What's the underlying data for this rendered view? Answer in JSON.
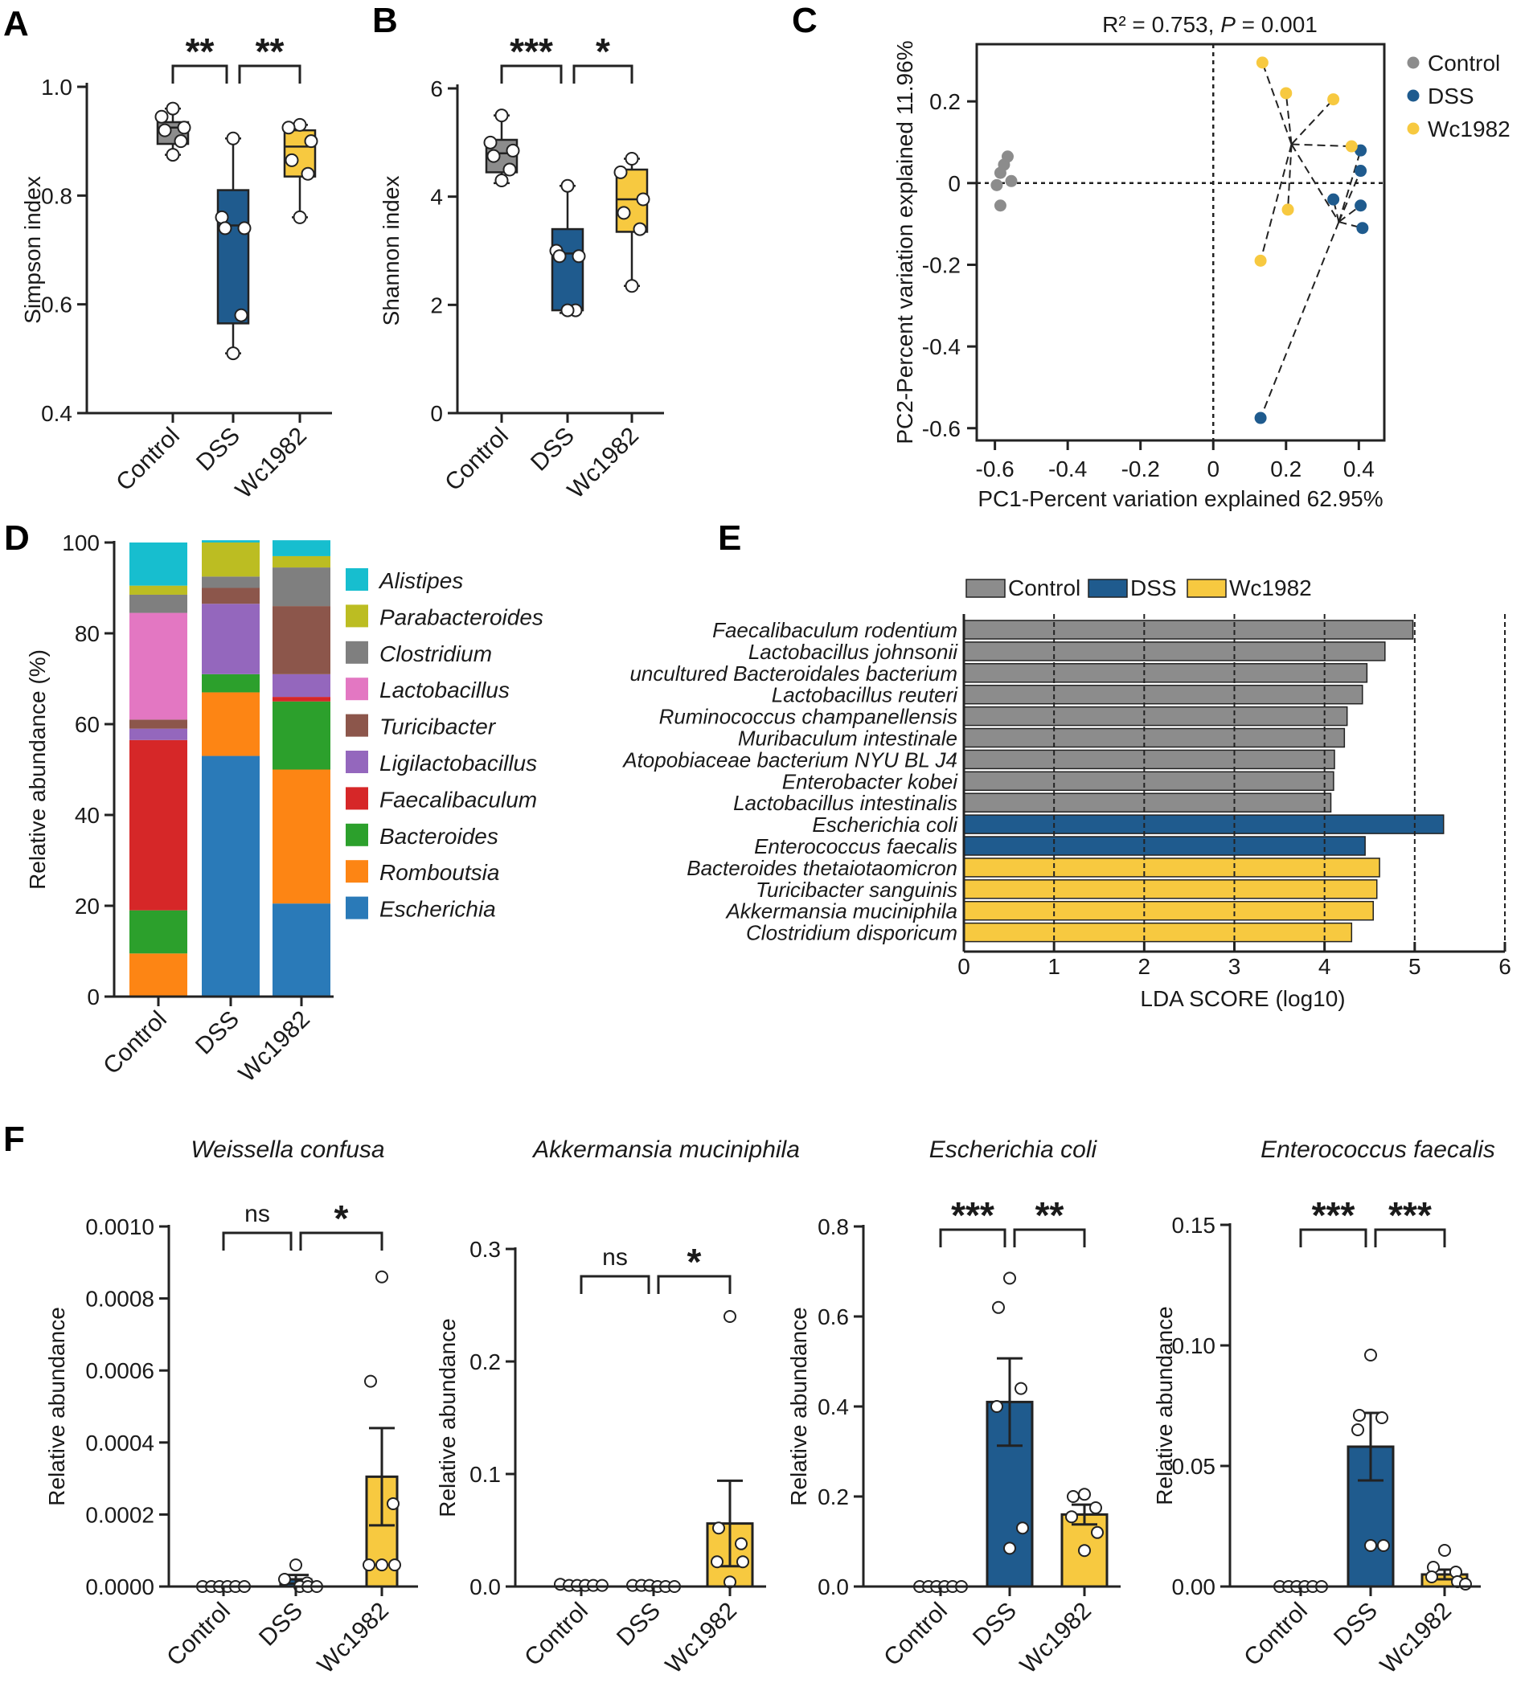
{
  "colors": {
    "control": "#8c8c8c",
    "dss": "#1f5b8e",
    "wc": "#f7c940",
    "axis": "#222222"
  },
  "chart_data": [
    {
      "panel": "A",
      "type": "box",
      "ylabel": "Simpson index",
      "ylim": [
        0.4,
        1.0
      ],
      "yticks": [
        "0.4",
        "0.6",
        "0.8",
        "1.0"
      ],
      "categories": [
        "Control",
        "DSS",
        "Wc1982"
      ],
      "boxes": [
        {
          "q1": 0.895,
          "median": 0.925,
          "q3": 0.935,
          "min": 0.875,
          "max": 0.96,
          "points": [
            0.96,
            0.945,
            0.925,
            0.92,
            0.9,
            0.875
          ]
        },
        {
          "q1": 0.565,
          "median": 0.745,
          "q3": 0.81,
          "min": 0.51,
          "max": 0.905,
          "points": [
            0.905,
            0.76,
            0.74,
            0.74,
            0.58,
            0.51
          ]
        },
        {
          "q1": 0.835,
          "median": 0.89,
          "q3": 0.92,
          "min": 0.76,
          "max": 0.93,
          "points": [
            0.93,
            0.925,
            0.9,
            0.865,
            0.84,
            0.76
          ]
        }
      ],
      "significance": [
        "**",
        "**"
      ]
    },
    {
      "panel": "B",
      "type": "box",
      "ylabel": "Shannon index",
      "ylim": [
        0,
        6
      ],
      "yticks": [
        "0",
        "2",
        "4",
        "6"
      ],
      "categories": [
        "Control",
        "DSS",
        "Wc1982"
      ],
      "boxes": [
        {
          "q1": 4.45,
          "median": 4.8,
          "q3": 5.05,
          "min": 4.25,
          "max": 5.5,
          "points": [
            5.5,
            5.0,
            4.85,
            4.75,
            4.5,
            4.3
          ]
        },
        {
          "q1": 1.9,
          "median": 2.95,
          "q3": 3.4,
          "min": 1.85,
          "max": 4.2,
          "points": [
            4.2,
            3.0,
            2.9,
            2.9,
            1.9,
            1.9
          ]
        },
        {
          "q1": 3.35,
          "median": 3.95,
          "q3": 4.5,
          "min": 2.35,
          "max": 4.7,
          "points": [
            4.7,
            4.45,
            3.95,
            3.7,
            3.4,
            2.35
          ]
        }
      ],
      "significance": [
        "***",
        "*"
      ]
    },
    {
      "panel": "C",
      "type": "scatter",
      "title_main": "R² = 0.753, ",
      "title_p": "P",
      "title_rest": " = 0.001",
      "xlabel": "PC1-Percent variation explained 62.95%",
      "ylabel": "PC2-Percent variation explained 11.96%",
      "xlim": [
        -0.65,
        0.47
      ],
      "ylim": [
        -0.63,
        0.34
      ],
      "xticks": [
        "-0.6",
        "-0.4",
        "-0.2",
        "0",
        "0.2",
        "0.4"
      ],
      "yticks": [
        "-0.6",
        "-0.4",
        "-0.2",
        "0",
        "0.2"
      ],
      "legend": [
        "Control",
        "DSS",
        "Wc1982"
      ],
      "series": [
        {
          "name": "Control",
          "points": [
            [
              -0.595,
              -0.005
            ],
            [
              -0.585,
              0.025
            ],
            [
              -0.575,
              0.045
            ],
            [
              -0.565,
              0.065
            ],
            [
              -0.555,
              0.005
            ],
            [
              -0.585,
              -0.055
            ]
          ]
        },
        {
          "name": "DSS",
          "points": [
            [
              0.405,
              0.08
            ],
            [
              0.405,
              0.03
            ],
            [
              0.405,
              -0.055
            ],
            [
              0.41,
              -0.11
            ],
            [
              0.33,
              -0.04
            ],
            [
              0.13,
              -0.575
            ]
          ]
        },
        {
          "name": "Wc1982",
          "points": [
            [
              0.135,
              0.295
            ],
            [
              0.2,
              0.22
            ],
            [
              0.33,
              0.205
            ],
            [
              0.38,
              0.09
            ],
            [
              0.205,
              -0.065
            ],
            [
              0.13,
              -0.19
            ]
          ]
        }
      ],
      "centroids": {
        "Wc1982": [
          0.215,
          0.095
        ],
        "DSS": [
          0.345,
          -0.095
        ]
      }
    },
    {
      "panel": "D",
      "type": "stacked-bar",
      "ylabel": "Relative abundance (%)",
      "ylim": [
        0,
        100
      ],
      "yticks": [
        "0",
        "20",
        "40",
        "60",
        "80",
        "100"
      ],
      "categories": [
        "Control",
        "DSS",
        "Wc1982"
      ],
      "series": [
        {
          "name": "Escherichia",
          "color": "#2a7ab8",
          "values": [
            0,
            53,
            20.5
          ]
        },
        {
          "name": "Romboutsia",
          "color": "#fd8514",
          "values": [
            9.5,
            14,
            29.5
          ]
        },
        {
          "name": "Bacteroides",
          "color": "#2ca02c",
          "values": [
            9.5,
            4,
            15
          ]
        },
        {
          "name": "Faecalibaculum",
          "color": "#d62728",
          "values": [
            37.5,
            0,
            1
          ]
        },
        {
          "name": "Ligilactobacillus",
          "color": "#9467bd",
          "values": [
            2.5,
            15.5,
            5
          ]
        },
        {
          "name": "Turicibacter",
          "color": "#8c564b",
          "values": [
            2,
            3.5,
            15
          ]
        },
        {
          "name": "Lactobacillus",
          "color": "#e377c2",
          "values": [
            23.5,
            0,
            0
          ]
        },
        {
          "name": "Clostridium",
          "color": "#7f7f7f",
          "values": [
            4,
            2.5,
            8.5
          ]
        },
        {
          "name": "Parabacteroides",
          "color": "#bcbd22",
          "values": [
            2,
            7.5,
            2.5
          ]
        },
        {
          "name": "Alistipes",
          "color": "#17becf",
          "values": [
            9.5,
            0.5,
            3.5
          ]
        }
      ]
    },
    {
      "panel": "E",
      "type": "hbar",
      "xlabel": "LDA SCORE (log10)",
      "xlim": [
        0,
        6
      ],
      "xticks": [
        "0",
        "1",
        "2",
        "3",
        "4",
        "5",
        "6"
      ],
      "legend": [
        "Control",
        "DSS",
        "Wc1982"
      ],
      "bars": [
        {
          "label": "Faecalibaculum rodentium",
          "value": 4.98,
          "group": 0
        },
        {
          "label": "Lactobacillus johnsonii",
          "value": 4.67,
          "group": 0
        },
        {
          "label": "uncultured Bacteroidales bacterium",
          "value": 4.47,
          "group": 0
        },
        {
          "label": "Lactobacillus reuteri",
          "value": 4.42,
          "group": 0
        },
        {
          "label": "Ruminococcus champanellensis",
          "value": 4.25,
          "group": 0
        },
        {
          "label": "Muribaculum intestinale",
          "value": 4.22,
          "group": 0
        },
        {
          "label": "Atopobiaceae bacterium NYU BL J4",
          "value": 4.11,
          "group": 0
        },
        {
          "label": "Enterobacter kobei",
          "value": 4.1,
          "group": 0
        },
        {
          "label": "Lactobacillus intestinalis",
          "value": 4.07,
          "group": 0
        },
        {
          "label": "Escherichia coli",
          "value": 5.32,
          "group": 1
        },
        {
          "label": "Enterococcus faecalis",
          "value": 4.45,
          "group": 1
        },
        {
          "label": "Bacteroides thetaiotaomicron",
          "value": 4.61,
          "group": 2
        },
        {
          "label": "Turicibacter sanguinis",
          "value": 4.58,
          "group": 2
        },
        {
          "label": "Akkermansia muciniphila",
          "value": 4.54,
          "group": 2
        },
        {
          "label": "Clostridium disporicum",
          "value": 4.3,
          "group": 2
        }
      ]
    },
    {
      "panel": "F1",
      "type": "bar",
      "title": "Weissella confusa",
      "ylabel": "Relative abundance",
      "ylim": [
        0,
        0.001
      ],
      "yticks": [
        "0.0000",
        "0.0002",
        "0.0004",
        "0.0006",
        "0.0008",
        "0.0010"
      ],
      "categories": [
        "Control",
        "DSS",
        "Wc1982"
      ],
      "means": [
        0,
        2e-05,
        0.000305
      ],
      "sem": [
        0,
        1.2e-05,
        0.000135
      ],
      "points": [
        [
          0,
          0,
          0,
          0,
          0,
          0
        ],
        [
          6e-05,
          2e-05,
          1e-05,
          0,
          0,
          0
        ],
        [
          0.00086,
          0.00057,
          0.00023,
          6e-05,
          6e-05,
          6e-05
        ]
      ],
      "significance": [
        "ns",
        "*"
      ]
    },
    {
      "panel": "F2",
      "type": "bar",
      "title": "Akkermansia muciniphila",
      "ylabel": "Relative abundance",
      "ylim": [
        0,
        0.3
      ],
      "yticks": [
        "0.0",
        "0.1",
        "0.2",
        "0.3"
      ],
      "categories": [
        "Control",
        "DSS",
        "Wc1982"
      ],
      "means": [
        0.001,
        0.001,
        0.056
      ],
      "sem": [
        0.0005,
        0.0005,
        0.038
      ],
      "points": [
        [
          0.002,
          0.001,
          0.001,
          0.001,
          0.001,
          0.001
        ],
        [
          0.001,
          0.001,
          0.001,
          0,
          0,
          0
        ],
        [
          0.24,
          0.052,
          0.038,
          0.022,
          0.022,
          0.004
        ]
      ],
      "significance": [
        "ns",
        "*"
      ]
    },
    {
      "panel": "F3",
      "type": "bar",
      "title": "Escherichia coli",
      "ylabel": "Relative abundance",
      "ylim": [
        0,
        0.8
      ],
      "yticks": [
        "0.0",
        "0.2",
        "0.4",
        "0.6",
        "0.8"
      ],
      "categories": [
        "Control",
        "DSS",
        "Wc1982"
      ],
      "means": [
        0.0,
        0.41,
        0.16
      ],
      "sem": [
        0.0,
        0.097,
        0.022
      ],
      "points": [
        [
          0,
          0,
          0,
          0,
          0,
          0
        ],
        [
          0.685,
          0.62,
          0.44,
          0.4,
          0.13,
          0.085
        ],
        [
          0.205,
          0.2,
          0.175,
          0.155,
          0.12,
          0.08
        ]
      ],
      "significance": [
        "***",
        "**"
      ]
    },
    {
      "panel": "F4",
      "type": "bar",
      "title": "Enterococcus faecalis",
      "ylabel": "Relative abundance",
      "ylim": [
        0,
        0.15
      ],
      "yticks": [
        "0.00",
        "0.05",
        "0.10",
        "0.15"
      ],
      "categories": [
        "Control",
        "DSS",
        "Wc1982"
      ],
      "means": [
        0.0,
        0.058,
        0.005
      ],
      "sem": [
        0.0,
        0.014,
        0.002
      ],
      "points": [
        [
          0,
          0,
          0,
          0,
          0,
          0
        ],
        [
          0.096,
          0.071,
          0.07,
          0.065,
          0.017,
          0.017
        ],
        [
          0.015,
          0.008,
          0.006,
          0.004,
          0.002,
          0.001
        ]
      ],
      "significance": [
        "***",
        "***"
      ]
    }
  ]
}
